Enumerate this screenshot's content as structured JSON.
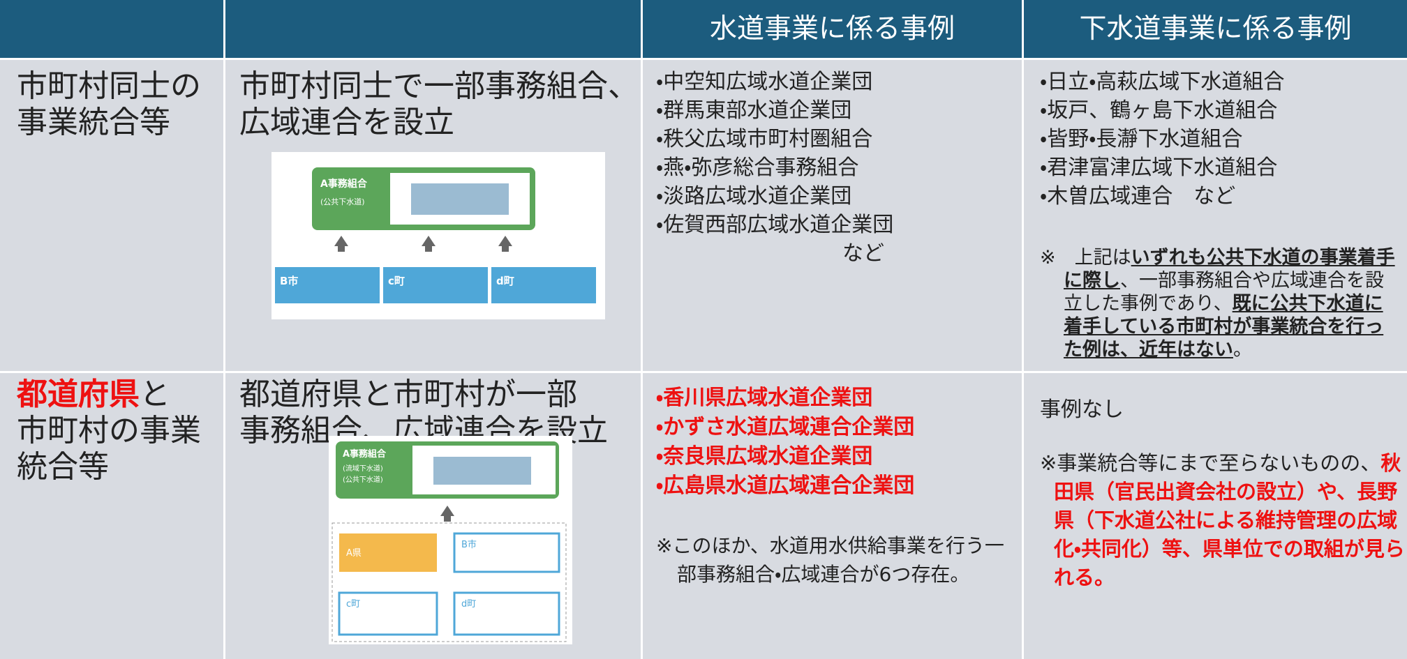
{
  "table": {
    "header": [
      "水道事業に係る事例",
      "下水道事業に係る事例"
    ],
    "rows": [
      {
        "category": [
          "市町村同士の",
          "事業統合等"
        ],
        "description": [
          "市町村同士で一部事務組合、",
          "広域連合を設立"
        ],
        "water": [
          "・中空知広域水道企業団",
          "・群馬東部水道企業団",
          "・秩父広域市町村圏組合",
          "・燕・弥彦総合事務組合",
          "・淡路広域水道企業団",
          "・佐賀西部広域水道企業団"
        ],
        "water_suffix": "など",
        "sewer": [
          "・日立・高萩広域下水道組合",
          "・坂戸、鶴ヶ島下水道組合",
          "・皆野・長瀞下水道組合",
          "・君津富津広域下水道組合",
          "・木曽広域連合　など"
        ],
        "sewer_note": [
          {
            "text": "※　上記は"
          },
          {
            "text": "いずれも公共下水道の事業着手に際し",
            "emphasis": true
          },
          {
            "text": "、一部事務組合や広域連合を設立した事例であり、"
          },
          {
            "text": "既に公共下水道に着手している市町村が事業統合を行った例は、近年はない",
            "emphasis": true
          },
          {
            "text": "。"
          }
        ]
      },
      {
        "category": {
          "highlight": "都道府県",
          "lines": [
            "と",
            "市町村の事業",
            "統合等"
          ]
        },
        "description": [
          "都道府県と市町村が一部",
          "事務組合、広域連合を設立"
        ],
        "water": [
          "・香川県広域水道企業団",
          "・かずさ水道広域連合企業団",
          "・奈良県広域水道企業団",
          "・広島県水道広域連合企業団"
        ],
        "water_note": "※このほか、水道用水供給事業を行う一部事務組合・広域連合が6つ存在。",
        "sewer": [
          "事例なし"
        ],
        "sewer_note": [
          "※事業統合等にまで至らないものの、",
          "秋田県（官民出資会社の設立）や、長野県（下水道公社による維持管理の広域化・共同化）等、県単位での取組が見られる。"
        ]
      }
    ]
  },
  "diagrams": [
    {
      "org": "A事務組合",
      "org_type": "(公共下水道)",
      "members": [
        "B市",
        "c町",
        "d町"
      ]
    },
    {
      "org": "A事務組合",
      "org_types": [
        "(流域下水道)",
        "(公共下水道)"
      ],
      "members": [
        "A県",
        "B市",
        "c町",
        "d町"
      ]
    }
  ]
}
